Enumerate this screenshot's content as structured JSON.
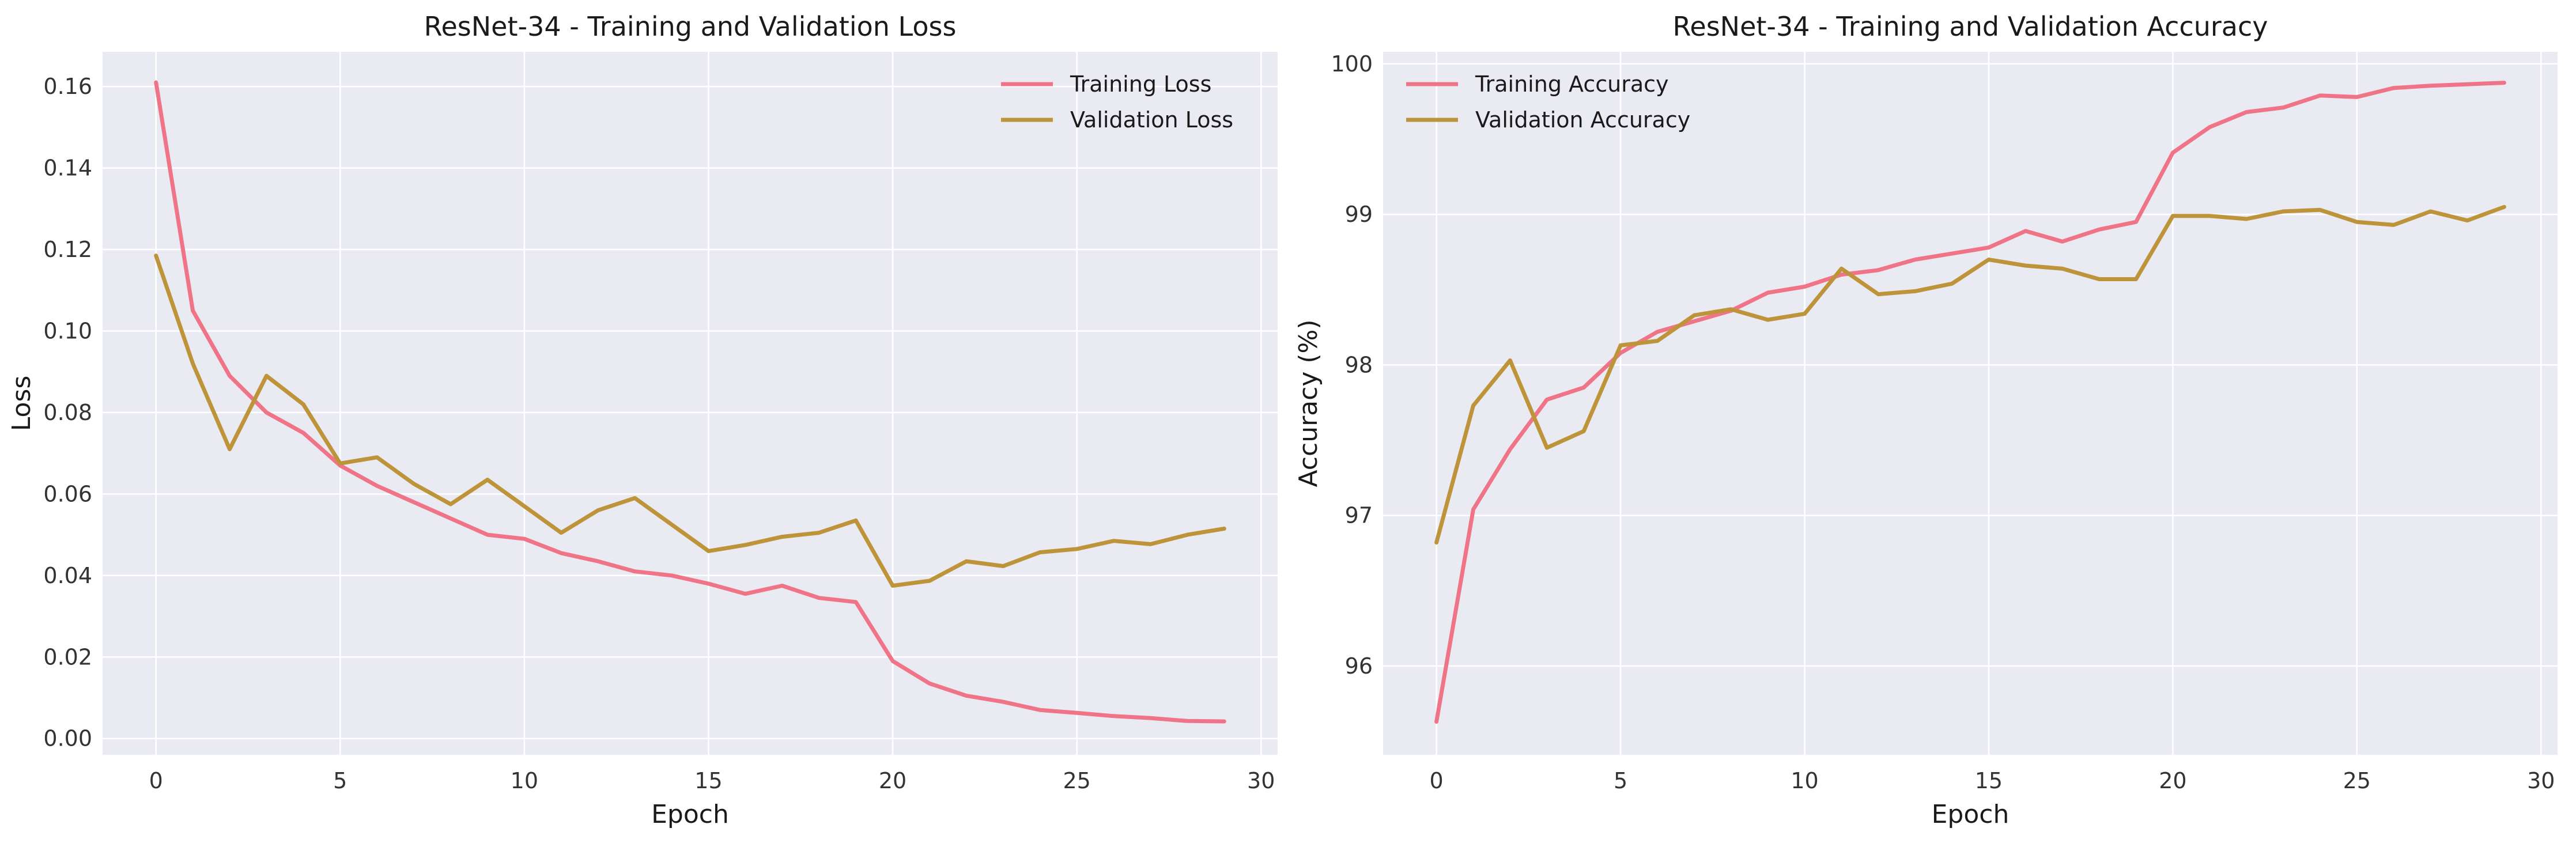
{
  "colors": {
    "plot_background": "#eaeaf2",
    "grid": "#ffffff",
    "training": "#f07487",
    "validation": "#bd9439"
  },
  "chart_data": [
    {
      "type": "line",
      "title": "ResNet-34 - Training and Validation Loss",
      "xlabel": "Epoch",
      "ylabel": "Loss",
      "xlim": [
        -1.45,
        30.45
      ],
      "ylim": [
        -0.004,
        0.1685
      ],
      "xticks": [
        0,
        5,
        10,
        15,
        20,
        25,
        30
      ],
      "xtick_labels": [
        "0",
        "5",
        "10",
        "15",
        "20",
        "25",
        "30"
      ],
      "yticks": [
        0,
        0.02,
        0.04,
        0.06,
        0.08,
        0.1,
        0.12,
        0.14,
        0.16
      ],
      "ytick_labels": [
        "0.00",
        "0.02",
        "0.04",
        "0.06",
        "0.08",
        "0.10",
        "0.12",
        "0.14",
        "0.16"
      ],
      "grid": true,
      "legend": "top-right",
      "x": [
        0,
        1,
        2,
        3,
        4,
        5,
        6,
        7,
        8,
        9,
        10,
        11,
        12,
        13,
        14,
        15,
        16,
        17,
        18,
        19,
        20,
        21,
        22,
        23,
        24,
        25,
        26,
        27,
        28,
        29
      ],
      "series": [
        {
          "name": "Training Loss",
          "color_key": "training",
          "values": [
            0.161,
            0.105,
            0.089,
            0.08,
            0.075,
            0.067,
            0.062,
            0.058,
            0.054,
            0.05,
            0.049,
            0.0455,
            0.0435,
            0.041,
            0.04,
            0.038,
            0.0355,
            0.0375,
            0.0345,
            0.0335,
            0.019,
            0.0135,
            0.0105,
            0.009,
            0.007,
            0.0063,
            0.0055,
            0.005,
            0.0043,
            0.0042
          ]
        },
        {
          "name": "Validation Loss",
          "color_key": "validation",
          "values": [
            0.1185,
            0.092,
            0.071,
            0.089,
            0.082,
            0.0675,
            0.069,
            0.0625,
            0.0575,
            0.0635,
            0.057,
            0.0505,
            0.056,
            0.059,
            0.0525,
            0.046,
            0.0475,
            0.0495,
            0.0505,
            0.0535,
            0.0375,
            0.0387,
            0.0435,
            0.0423,
            0.0457,
            0.0465,
            0.0485,
            0.0477,
            0.05,
            0.0515
          ]
        }
      ]
    },
    {
      "type": "line",
      "title": "ResNet-34 - Training and Validation Accuracy",
      "xlabel": "Epoch",
      "ylabel": "Accuracy (%)",
      "xlim": [
        -1.45,
        30.45
      ],
      "ylim": [
        95.41,
        100.08
      ],
      "xticks": [
        0,
        5,
        10,
        15,
        20,
        25,
        30
      ],
      "xtick_labels": [
        "0",
        "5",
        "10",
        "15",
        "20",
        "25",
        "30"
      ],
      "yticks": [
        96,
        97,
        98,
        99,
        100
      ],
      "ytick_labels": [
        "96",
        "97",
        "98",
        "99",
        "100"
      ],
      "grid": true,
      "legend": "top-left",
      "x": [
        0,
        1,
        2,
        3,
        4,
        5,
        6,
        7,
        8,
        9,
        10,
        11,
        12,
        13,
        14,
        15,
        16,
        17,
        18,
        19,
        20,
        21,
        22,
        23,
        24,
        25,
        26,
        27,
        28,
        29
      ],
      "series": [
        {
          "name": "Training Accuracy",
          "color_key": "training",
          "values": [
            95.63,
            97.04,
            97.44,
            97.77,
            97.85,
            98.08,
            98.22,
            98.29,
            98.36,
            98.48,
            98.52,
            98.6,
            98.63,
            98.7,
            98.74,
            98.78,
            98.89,
            98.82,
            98.9,
            98.95,
            99.41,
            99.58,
            99.68,
            99.71,
            99.79,
            99.78,
            99.84,
            99.855,
            99.865,
            99.875
          ]
        },
        {
          "name": "Validation Accuracy",
          "color_key": "validation",
          "values": [
            96.82,
            97.73,
            98.03,
            97.45,
            97.56,
            98.13,
            98.16,
            98.33,
            98.37,
            98.3,
            98.34,
            98.64,
            98.47,
            98.49,
            98.54,
            98.7,
            98.66,
            98.64,
            98.57,
            98.57,
            98.99,
            98.99,
            98.97,
            99.02,
            99.03,
            98.95,
            98.93,
            99.02,
            98.96,
            99.05
          ]
        }
      ]
    }
  ]
}
